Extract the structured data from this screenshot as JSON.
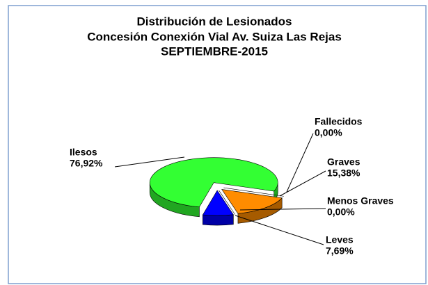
{
  "chart_data": {
    "type": "pie3d",
    "title": "Distribución de Lesionados",
    "subtitle": [
      "Concesión Conexión Vial Av. Suiza Las Rejas",
      "SEPTIEMBRE-2015"
    ],
    "categories": [
      "Fallecidos",
      "Graves",
      "Menos Graves",
      "Leves",
      "Ilesos"
    ],
    "values": [
      0,
      15.38,
      0,
      7.69,
      76.92
    ],
    "value_labels": [
      "0,00%",
      "15,38%",
      "0,00%",
      "7,69%",
      "76,92%"
    ],
    "colors": [
      "#c00000",
      "#ff8c00",
      "#ffff00",
      "#0000ff",
      "#33ff33"
    ]
  }
}
